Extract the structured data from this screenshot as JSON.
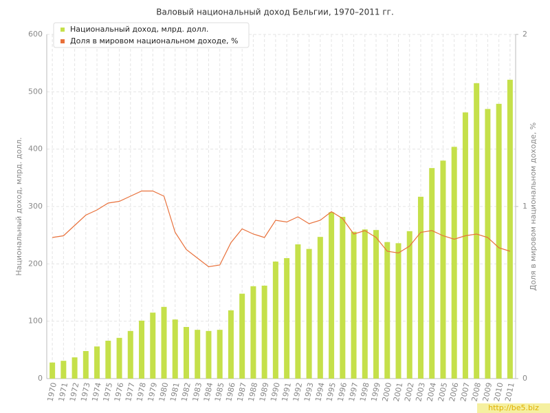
{
  "chart_data": {
    "type": "bar-line",
    "title": "Валовый национальный доход Бельгии, 1970–2011 гг.",
    "y_label": "Национальный доход, млрд. долл.",
    "y2_label": "Доля в мировом национальном доходе, %",
    "watermark": "http://be5.biz",
    "categories": [
      "1970",
      "1971",
      "1972",
      "1973",
      "1974",
      "1975",
      "1976",
      "1977",
      "1978",
      "1979",
      "1980",
      "1981",
      "1982",
      "1983",
      "1984",
      "1985",
      "1986",
      "1987",
      "1988",
      "1989",
      "1990",
      "1991",
      "1992",
      "1993",
      "1994",
      "1995",
      "1996",
      "1997",
      "1998",
      "1999",
      "2000",
      "2001",
      "2002",
      "2003",
      "2004",
      "2005",
      "2006",
      "2007",
      "2008",
      "2009",
      "2010",
      "2011"
    ],
    "series": [
      {
        "name": "Национальный доход, млрд. долл.",
        "color": "#c5e04a",
        "type": "bar",
        "values": [
          28,
          31,
          37,
          48,
          56,
          66,
          71,
          83,
          101,
          115,
          125,
          103,
          90,
          85,
          83,
          85,
          119,
          148,
          161,
          162,
          204,
          210,
          234,
          226,
          247,
          290,
          282,
          256,
          260,
          259,
          238,
          236,
          257,
          317,
          367,
          380,
          404,
          464,
          515,
          470,
          479,
          521
        ]
      },
      {
        "name": "Доля в мировом национальном доходе, %",
        "color": "#e8703a",
        "type": "line",
        "axis": "y2",
        "values": [
          0.82,
          0.83,
          0.89,
          0.95,
          0.98,
          1.02,
          1.03,
          1.06,
          1.09,
          1.09,
          1.06,
          0.85,
          0.75,
          0.7,
          0.65,
          0.66,
          0.79,
          0.87,
          0.84,
          0.82,
          0.92,
          0.91,
          0.94,
          0.9,
          0.92,
          0.97,
          0.93,
          0.84,
          0.86,
          0.82,
          0.74,
          0.73,
          0.77,
          0.85,
          0.86,
          0.83,
          0.81,
          0.83,
          0.84,
          0.82,
          0.76,
          0.74
        ]
      }
    ],
    "ylim": [
      0,
      600
    ],
    "yticks": [
      0,
      100,
      200,
      300,
      400,
      500,
      600
    ],
    "y2lim": [
      0,
      2
    ],
    "y2ticks": [
      0,
      1,
      2
    ],
    "grid": true,
    "legend": "top-left"
  }
}
